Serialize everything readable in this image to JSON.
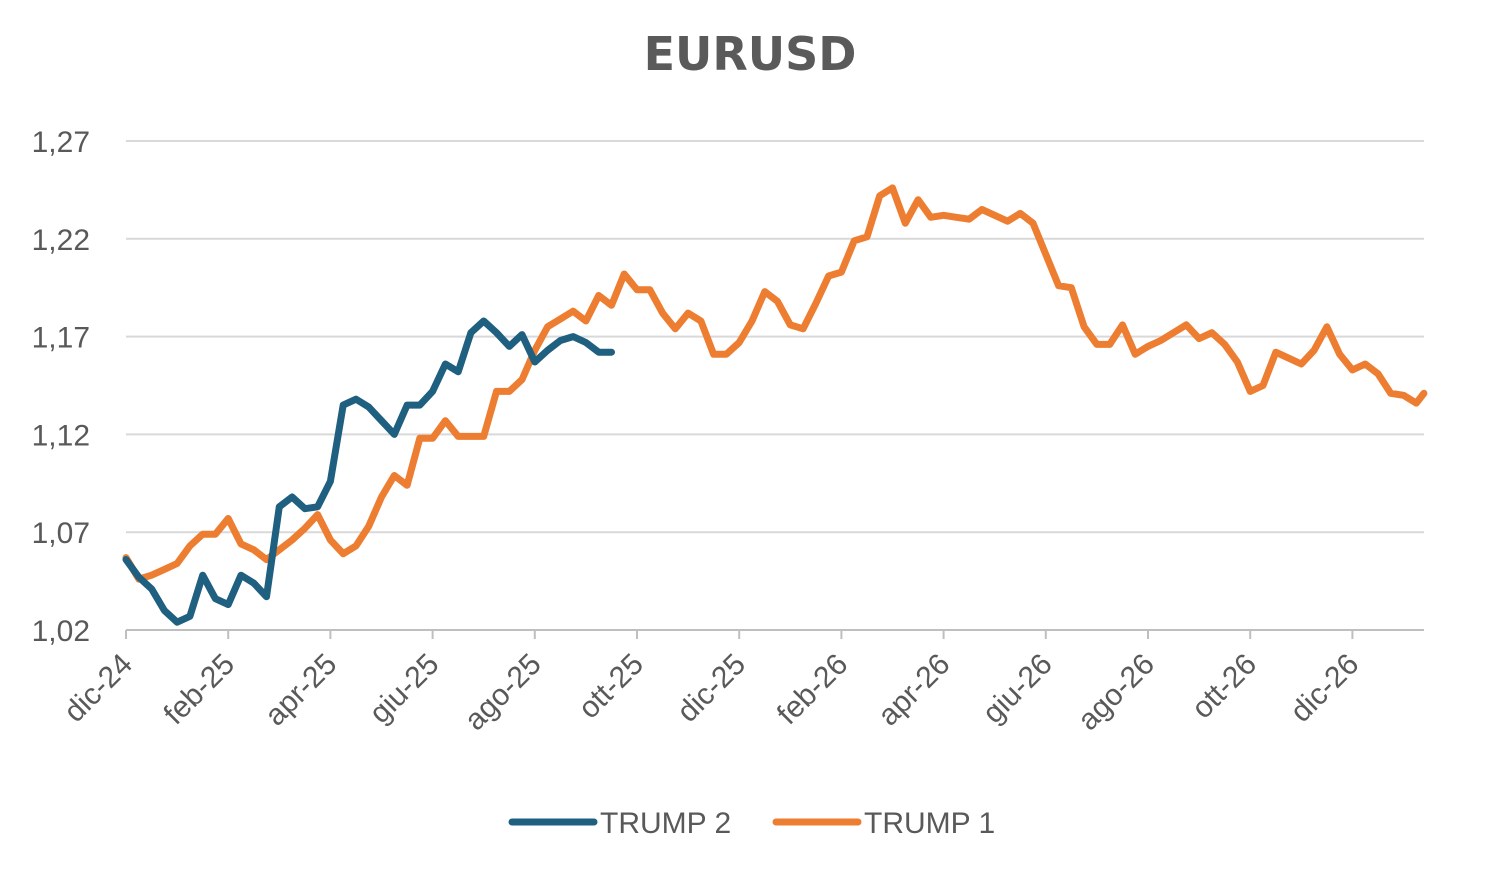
{
  "chart_data": {
    "type": "line",
    "title": "EURUSD",
    "xlabel": "",
    "ylabel": "",
    "ylim": [
      1.02,
      1.27
    ],
    "y_ticks": [
      "1,02",
      "1,07",
      "1,12",
      "1,17",
      "1,22",
      "1,27"
    ],
    "y_tick_values": [
      1.02,
      1.07,
      1.12,
      1.17,
      1.22,
      1.27
    ],
    "x_tick_labels": [
      "dic-24",
      "feb-25",
      "apr-25",
      "giu-25",
      "ago-25",
      "ott-25",
      "dic-25",
      "feb-26",
      "apr-26",
      "giu-26",
      "ago-26",
      "ott-26",
      "dic-26"
    ],
    "x_range_months": [
      0,
      25.4
    ],
    "grid": true,
    "legend": "bottom",
    "series": [
      {
        "name": "TRUMP 2",
        "color": "#1f5f7f",
        "x": [
          0,
          0.25,
          0.5,
          0.75,
          1.0,
          1.25,
          1.5,
          1.75,
          2.0,
          2.25,
          2.5,
          2.75,
          3.0,
          3.25,
          3.5,
          3.75,
          4.0,
          4.25,
          4.5,
          4.75,
          5.0,
          5.25,
          5.5,
          5.75,
          6.0,
          6.25,
          6.5,
          6.75,
          7.0,
          7.25,
          7.5,
          7.75,
          8.0,
          8.25,
          8.5,
          8.75,
          9.0,
          9.25,
          9.5
        ],
        "y": [
          1.056,
          1.047,
          1.041,
          1.03,
          1.024,
          1.027,
          1.048,
          1.036,
          1.033,
          1.048,
          1.044,
          1.037,
          1.083,
          1.088,
          1.082,
          1.083,
          1.096,
          1.135,
          1.138,
          1.134,
          1.127,
          1.12,
          1.135,
          1.135,
          1.142,
          1.156,
          1.152,
          1.172,
          1.178,
          1.172,
          1.165,
          1.171,
          1.157,
          1.163,
          1.168,
          1.17,
          1.167,
          1.162,
          1.162
        ],
        "values_note_removed": null
      },
      {
        "name": "TRUMP 1",
        "color": "#ed7d31",
        "x": [
          0,
          0.25,
          0.5,
          0.75,
          1.0,
          1.25,
          1.5,
          1.75,
          2.0,
          2.25,
          2.5,
          2.75,
          3.0,
          3.25,
          3.5,
          3.75,
          4.0,
          4.25,
          4.5,
          4.75,
          5.0,
          5.25,
          5.5,
          5.75,
          6.0,
          6.25,
          6.5,
          6.75,
          7.0,
          7.25,
          7.5,
          7.75,
          8.0,
          8.25,
          8.5,
          8.75,
          9.0,
          9.25,
          9.5,
          9.75,
          10.0,
          10.25,
          10.5,
          10.75,
          11.0,
          11.25,
          11.5,
          11.75,
          12.0,
          12.25,
          12.5,
          12.75,
          13.0,
          13.25,
          13.5,
          13.75,
          14.0,
          14.25,
          14.5,
          14.75,
          15.0,
          15.25,
          15.5,
          15.75,
          16.0,
          16.25,
          16.5,
          16.75,
          17.0,
          17.25,
          17.5,
          17.75,
          18.0,
          18.25,
          18.5,
          18.75,
          19.0,
          19.25,
          19.5,
          19.75,
          20.0,
          20.25,
          20.5,
          20.75,
          21.0,
          21.25,
          21.5,
          21.75,
          22.0,
          22.25,
          22.5,
          22.75,
          23.0,
          23.25,
          23.5,
          23.75,
          24.0,
          24.25,
          24.5,
          24.75,
          25.0,
          25.25,
          25.4
        ],
        "y": [
          1.057,
          1.046,
          1.048,
          1.051,
          1.054,
          1.063,
          1.069,
          1.069,
          1.077,
          1.064,
          1.061,
          1.056,
          1.061,
          1.066,
          1.072,
          1.079,
          1.066,
          1.059,
          1.063,
          1.073,
          1.088,
          1.099,
          1.094,
          1.118,
          1.118,
          1.127,
          1.119,
          1.119,
          1.119,
          1.142,
          1.142,
          1.148,
          1.163,
          1.175,
          1.179,
          1.183,
          1.178,
          1.191,
          1.186,
          1.202,
          1.194,
          1.194,
          1.182,
          1.174,
          1.182,
          1.178,
          1.161,
          1.161,
          1.167,
          1.178,
          1.193,
          1.188,
          1.176,
          1.174,
          1.187,
          1.201,
          1.203,
          1.219,
          1.221,
          1.242,
          1.246,
          1.228,
          1.24,
          1.231,
          1.232,
          1.231,
          1.23,
          1.235,
          1.232,
          1.229,
          1.233,
          1.228,
          1.212,
          1.196,
          1.195,
          1.175,
          1.166,
          1.166,
          1.176,
          1.161,
          1.165,
          1.168,
          1.172,
          1.176,
          1.169,
          1.172,
          1.166,
          1.157,
          1.142,
          1.145,
          1.162,
          1.159,
          1.156,
          1.163,
          1.175,
          1.161,
          1.153,
          1.156,
          1.151,
          1.141,
          1.14,
          1.136,
          1.141
        ]
      }
    ]
  }
}
